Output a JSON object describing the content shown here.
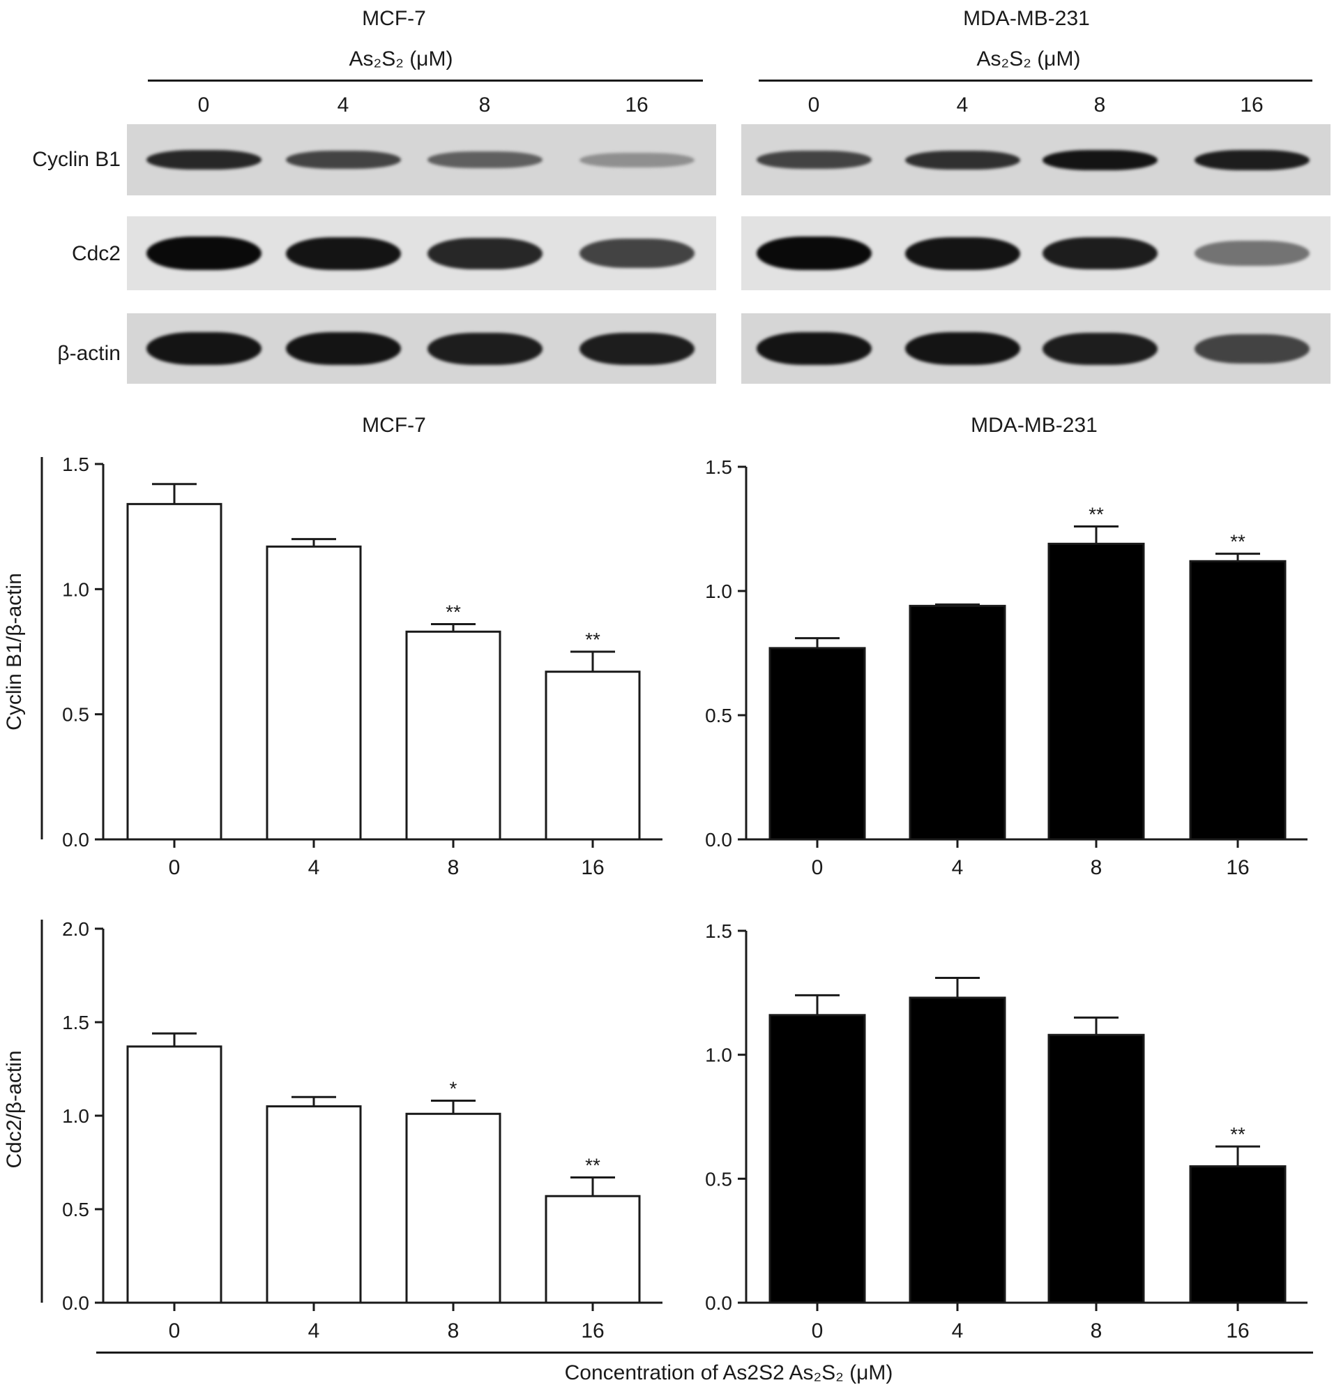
{
  "blot_panels": [
    {
      "cell_line": "MCF-7",
      "treatment_label": "As₂S₂ (μM)",
      "lanes": [
        "0",
        "4",
        "8",
        "16"
      ],
      "rows": [
        {
          "label": "Cyclin B1",
          "intensity": [
            0.85,
            0.7,
            0.55,
            0.3
          ]
        },
        {
          "label": "Cdc2",
          "intensity": [
            1.0,
            0.95,
            0.85,
            0.7
          ]
        },
        {
          "label": "β-actin",
          "intensity": [
            0.95,
            0.95,
            0.9,
            0.9
          ]
        }
      ]
    },
    {
      "cell_line": "MDA-MB-231",
      "treatment_label": "As₂S₂ (μM)",
      "lanes": [
        "0",
        "4",
        "8",
        "16"
      ],
      "rows": [
        {
          "label": "Cyclin B1",
          "intensity": [
            0.7,
            0.8,
            0.95,
            0.9
          ]
        },
        {
          "label": "Cdc2",
          "intensity": [
            1.0,
            0.95,
            0.9,
            0.45
          ]
        },
        {
          "label": "β-actin",
          "intensity": [
            0.95,
            0.95,
            0.9,
            0.7
          ]
        }
      ]
    }
  ],
  "chart_titles": [
    "MCF-7",
    "MDA-MB-231"
  ],
  "shared_xlabel": "Concentration of As2S2 As₂S₂ (μM)",
  "chart_data": [
    {
      "type": "bar",
      "cell_line": "MCF-7",
      "ylabel": "Cyclin B1/β-actin",
      "categories": [
        "0",
        "4",
        "8",
        "16"
      ],
      "values": [
        1.34,
        1.17,
        0.83,
        0.67
      ],
      "errors": [
        0.08,
        0.03,
        0.03,
        0.08
      ],
      "significance": [
        "",
        "",
        "**",
        "**"
      ],
      "ylim": [
        0,
        1.5
      ],
      "yticks": [
        "0.0",
        "0.5",
        "1.0",
        "1.5"
      ],
      "fill": "#ffffff"
    },
    {
      "type": "bar",
      "cell_line": "MDA-MB-231",
      "ylabel": "",
      "categories": [
        "0",
        "4",
        "8",
        "16"
      ],
      "values": [
        0.77,
        0.94,
        1.19,
        1.12
      ],
      "errors": [
        0.04,
        0.0,
        0.07,
        0.03
      ],
      "significance": [
        "",
        "",
        "**",
        "**"
      ],
      "ylim": [
        0,
        1.5
      ],
      "yticks": [
        "0.0",
        "0.5",
        "1.0",
        "1.5"
      ],
      "fill": "#000000"
    },
    {
      "type": "bar",
      "cell_line": "MCF-7",
      "ylabel": "Cdc2/β-actin",
      "categories": [
        "0",
        "4",
        "8",
        "16"
      ],
      "values": [
        1.37,
        1.05,
        1.01,
        0.57
      ],
      "errors": [
        0.07,
        0.05,
        0.07,
        0.1
      ],
      "significance": [
        "",
        "",
        "*",
        "**"
      ],
      "ylim": [
        0,
        2.0
      ],
      "yticks": [
        "0.0",
        "0.5",
        "1.0",
        "1.5",
        "2.0"
      ],
      "fill": "#ffffff"
    },
    {
      "type": "bar",
      "cell_line": "MDA-MB-231",
      "ylabel": "",
      "categories": [
        "0",
        "4",
        "8",
        "16"
      ],
      "values": [
        1.16,
        1.23,
        1.08,
        0.55
      ],
      "errors": [
        0.08,
        0.08,
        0.07,
        0.08
      ],
      "significance": [
        "",
        "",
        "",
        "**"
      ],
      "ylim": [
        0,
        1.5
      ],
      "yticks": [
        "0.0",
        "0.5",
        "1.0",
        "1.5"
      ],
      "fill": "#000000"
    }
  ]
}
